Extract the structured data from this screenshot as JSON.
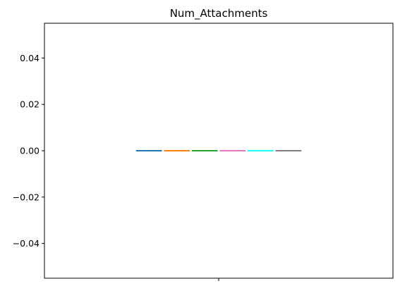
{
  "chart_data": {
    "type": "bar",
    "title": "Num_Attachments",
    "xlabel": "",
    "ylabel": "",
    "categories": [
      ""
    ],
    "series": [
      {
        "values": [
          0.0
        ],
        "color": "#1f77b4"
      },
      {
        "values": [
          0.0
        ],
        "color": "#ff7f0e"
      },
      {
        "values": [
          0.0
        ],
        "color": "#2ca02c"
      },
      {
        "values": [
          0.0
        ],
        "color": "#e377c2"
      },
      {
        "values": [
          0.0
        ],
        "color": "#17ffff"
      },
      {
        "values": [
          0.0
        ],
        "color": "#7f7f7f"
      }
    ],
    "ylim": [
      -0.055,
      0.055
    ],
    "yticks": [
      {
        "value": 0.04,
        "label": "0.04"
      },
      {
        "value": 0.02,
        "label": "0.02"
      },
      {
        "value": 0.0,
        "label": "0.00"
      },
      {
        "value": -0.02,
        "label": "−0.02"
      },
      {
        "value": -0.04,
        "label": "−0.04"
      }
    ],
    "grid": false,
    "legend": "none"
  }
}
